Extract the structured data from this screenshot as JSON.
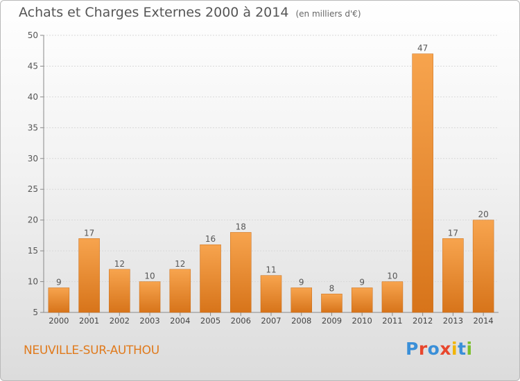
{
  "header": {
    "title": "Achats et Charges Externes 2000 à 2014",
    "unit": "(en milliers d'€)"
  },
  "footer": {
    "town": "NEUVILLE-SUR-AUTHOU",
    "logo": "Proxiti",
    "logo_colors": [
      "#3a8fd8",
      "#e8462c",
      "#3a8fd8",
      "#e8462c",
      "#f2b400",
      "#3a8fd8",
      "#7bbf2b"
    ]
  },
  "chart_data": {
    "type": "bar",
    "categories": [
      "2000",
      "2001",
      "2002",
      "2003",
      "2004",
      "2005",
      "2006",
      "2007",
      "2008",
      "2009",
      "2010",
      "2011",
      "2012",
      "2013",
      "2014"
    ],
    "values": [
      9,
      17,
      12,
      10,
      12,
      16,
      18,
      11,
      9,
      8,
      9,
      10,
      47,
      17,
      20
    ],
    "ylim": [
      5,
      50
    ],
    "yticks": [
      5,
      10,
      15,
      20,
      25,
      30,
      35,
      40,
      45,
      50
    ],
    "grid": true,
    "bar_color_light": "#f7a44e",
    "bar_color_dark": "#d7741a"
  }
}
